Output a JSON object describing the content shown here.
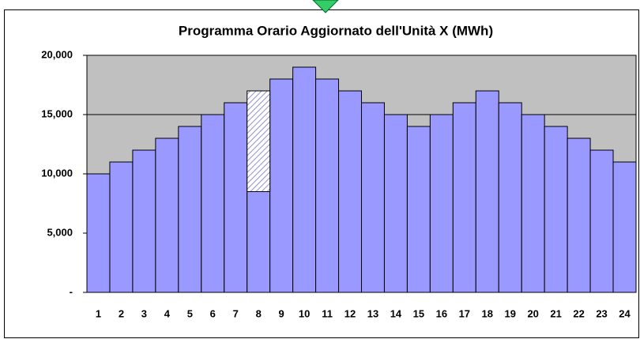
{
  "chart_data": {
    "type": "bar",
    "title": "Programma Orario Aggiornato dell'Unità X (MWh)",
    "categories": [
      "1",
      "2",
      "3",
      "4",
      "5",
      "6",
      "7",
      "8",
      "9",
      "10",
      "11",
      "12",
      "13",
      "14",
      "15",
      "16",
      "17",
      "18",
      "19",
      "20",
      "21",
      "22",
      "23",
      "24"
    ],
    "series": [
      {
        "color": "#9999ff",
        "values": [
          10000,
          11000,
          12000,
          13000,
          14000,
          15000,
          16000,
          8500,
          18000,
          19000,
          18000,
          17000,
          16000,
          15000,
          14000,
          15000,
          16000,
          17000,
          16000,
          15000,
          14000,
          13000,
          12000,
          11000
        ]
      },
      {
        "color": "#c8c8f0",
        "pattern": "hatch",
        "values": [
          null,
          null,
          null,
          null,
          null,
          null,
          null,
          8500,
          null,
          null,
          null,
          null,
          null,
          null,
          null,
          null,
          null,
          null,
          null,
          null,
          null,
          null,
          null,
          null
        ]
      }
    ],
    "stacked": true,
    "ylim": [
      0,
      20000
    ],
    "yticks": [
      {
        "value": 0,
        "label": "-"
      },
      {
        "value": 5000,
        "label": "5,000"
      },
      {
        "value": 10000,
        "label": "10,000"
      },
      {
        "value": 15000,
        "label": "15,000"
      },
      {
        "value": 20000,
        "label": "20,000"
      }
    ],
    "grid": true
  }
}
